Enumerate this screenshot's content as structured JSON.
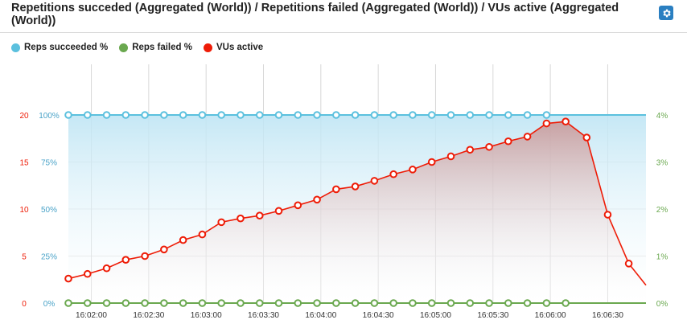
{
  "header": {
    "title": "Repetitions succeded (Aggregated (World)) / Repetitions failed (Aggregated (World)) / VUs active (Aggregated (World))",
    "settings_icon": "gear-icon"
  },
  "legend": [
    {
      "label": "Reps succeeded %",
      "color": "#5bc0de"
    },
    {
      "label": "Reps failed %",
      "color": "#6aa84f"
    },
    {
      "label": "VUs active",
      "color": "#ee1c07"
    }
  ],
  "chart_data": {
    "type": "line",
    "x_tick_labels": [
      "16:02:00",
      "16:02:30",
      "16:03:00",
      "16:03:30",
      "16:04:00",
      "16:04:30",
      "16:05:00",
      "16:05:30",
      "16:06:00",
      "16:06:30"
    ],
    "x_tick_seconds": [
      120,
      150,
      180,
      210,
      240,
      270,
      300,
      330,
      360,
      390
    ],
    "x_range": [
      108,
      410
    ],
    "axes": {
      "vus": {
        "position": "left-outer",
        "ticks": [
          "0",
          "5",
          "10",
          "15",
          "20"
        ],
        "range": [
          0,
          20
        ],
        "color": "#ee1c07"
      },
      "reps_succeeded": {
        "position": "left-inner",
        "ticks": [
          "0%",
          "25%",
          "50%",
          "75%",
          "100%"
        ],
        "range": [
          0,
          100
        ],
        "color": "#4aa3c8"
      },
      "reps_failed": {
        "position": "right",
        "ticks": [
          "0%",
          "1%",
          "2%",
          "3%",
          "4%"
        ],
        "range": [
          0,
          4
        ],
        "color": "#6aa84f"
      }
    },
    "series": [
      {
        "name": "Reps succeeded %",
        "axis": "reps_succeeded",
        "color": "#5bc0de",
        "area": true,
        "x": [
          108,
          118,
          128,
          138,
          148,
          158,
          168,
          178,
          188,
          198,
          208,
          218,
          228,
          238,
          248,
          258,
          268,
          278,
          288,
          298,
          308,
          318,
          328,
          338,
          348,
          358
        ],
        "y": [
          100,
          100,
          100,
          100,
          100,
          100,
          100,
          100,
          100,
          100,
          100,
          100,
          100,
          100,
          100,
          100,
          100,
          100,
          100,
          100,
          100,
          100,
          100,
          100,
          100,
          100
        ]
      },
      {
        "name": "Reps failed %",
        "axis": "reps_failed",
        "color": "#6aa84f",
        "area": false,
        "x": [
          108,
          118,
          128,
          138,
          148,
          158,
          168,
          178,
          188,
          198,
          208,
          218,
          228,
          238,
          248,
          258,
          268,
          278,
          288,
          298,
          308,
          318,
          328,
          338,
          348,
          358,
          368
        ],
        "y": [
          0,
          0,
          0,
          0,
          0,
          0,
          0,
          0,
          0,
          0,
          0,
          0,
          0,
          0,
          0,
          0,
          0,
          0,
          0,
          0,
          0,
          0,
          0,
          0,
          0,
          0,
          0
        ]
      },
      {
        "name": "VUs active",
        "axis": "vus",
        "color": "#ee1c07",
        "area": true,
        "x": [
          108,
          118,
          128,
          138,
          148,
          158,
          168,
          178,
          188,
          198,
          208,
          218,
          228,
          238,
          248,
          258,
          268,
          278,
          288,
          298,
          308,
          318,
          328,
          338,
          348,
          358,
          368,
          379,
          390,
          401,
          410
        ],
        "y": [
          2.6,
          3.1,
          3.7,
          4.6,
          5.0,
          5.7,
          6.7,
          7.3,
          8.6,
          9.0,
          9.3,
          9.8,
          10.4,
          11.0,
          12.1,
          12.4,
          13.0,
          13.7,
          14.2,
          15.0,
          15.6,
          16.3,
          16.6,
          17.2,
          17.7,
          19.1,
          19.3,
          17.6,
          9.4,
          4.2,
          1.9
        ]
      }
    ],
    "markers": {
      "VUs active": {
        "hide_last": true
      }
    },
    "grid": true,
    "legend_position": "top-left"
  }
}
